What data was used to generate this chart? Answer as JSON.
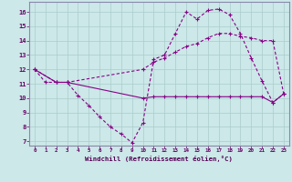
{
  "bg_color": "#cce8e8",
  "line_color": "#880088",
  "grid_color": "#aacccc",
  "spine_color": "#8888aa",
  "xlabel": "Windchill (Refroidissement éolien,°C)",
  "xlim": [
    -0.5,
    23.5
  ],
  "ylim": [
    6.7,
    16.7
  ],
  "yticks": [
    7,
    8,
    9,
    10,
    11,
    12,
    13,
    14,
    15,
    16
  ],
  "xticks": [
    0,
    1,
    2,
    3,
    4,
    5,
    6,
    7,
    8,
    9,
    10,
    11,
    12,
    13,
    14,
    15,
    16,
    17,
    18,
    19,
    20,
    21,
    22,
    23
  ],
  "line1_x": [
    0,
    1,
    2,
    3,
    4,
    5,
    6,
    7,
    8,
    9,
    10,
    11,
    12,
    13,
    14,
    15,
    16,
    17,
    18,
    19,
    20,
    21,
    22,
    23
  ],
  "line1_y": [
    12,
    11.1,
    11.1,
    11.1,
    10.2,
    9.5,
    8.7,
    8.0,
    7.5,
    6.9,
    8.3,
    12.7,
    13.0,
    14.5,
    16.0,
    15.5,
    16.1,
    16.2,
    15.8,
    14.5,
    12.8,
    11.2,
    9.7,
    10.3
  ],
  "line2_x": [
    0,
    2,
    3,
    10,
    11,
    12,
    13,
    14,
    15,
    16,
    17,
    18,
    19,
    20,
    21,
    22,
    23
  ],
  "line2_y": [
    12,
    11.1,
    11.1,
    12.0,
    12.5,
    12.8,
    13.2,
    13.6,
    13.8,
    14.2,
    14.5,
    14.5,
    14.3,
    14.2,
    14.0,
    14.0,
    10.3
  ],
  "line3_x": [
    0,
    2,
    3,
    10,
    11,
    12,
    13,
    14,
    15,
    16,
    17,
    18,
    19,
    20,
    21,
    22,
    23
  ],
  "line3_y": [
    12,
    11.1,
    11.1,
    10.0,
    10.1,
    10.1,
    10.1,
    10.1,
    10.1,
    10.1,
    10.1,
    10.1,
    10.1,
    10.1,
    10.1,
    9.7,
    10.3
  ]
}
